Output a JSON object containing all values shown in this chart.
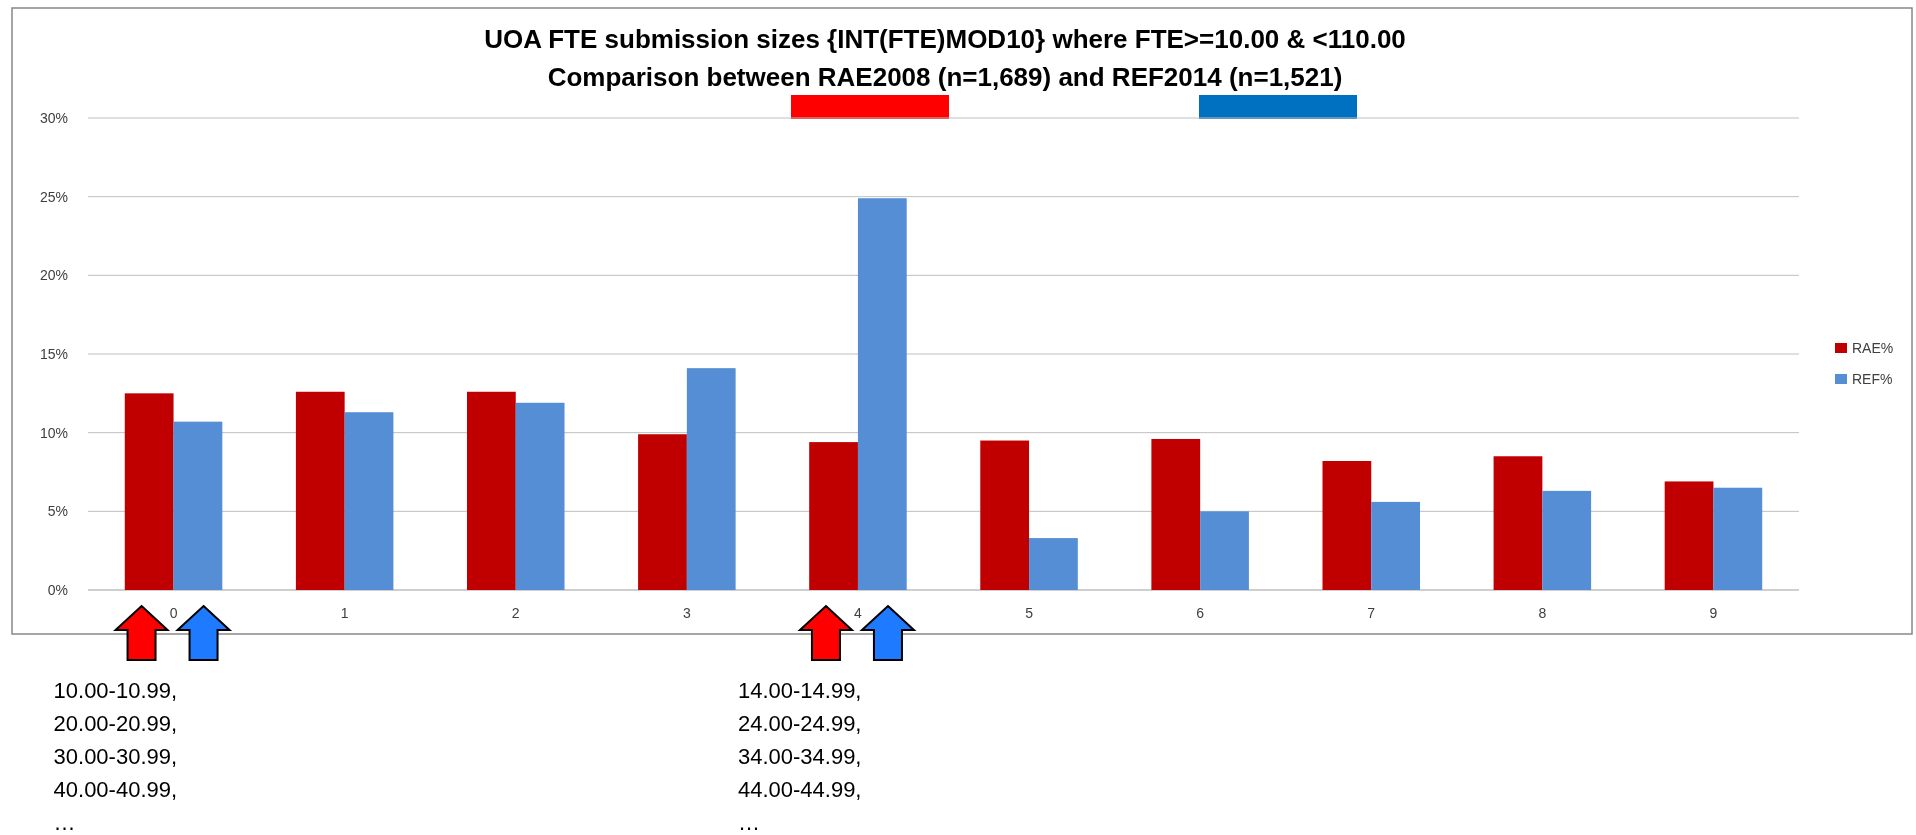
{
  "chart_data": {
    "type": "bar",
    "title": "UOA FTE submission sizes {INT(FTE)MOD10} where FTE>=10.00 & <110.00",
    "subtitle": "Comparison between RAE2008 (n=1,689) and REF2014 (n=1,521)",
    "categories": [
      "0",
      "1",
      "2",
      "3",
      "4",
      "5",
      "6",
      "7",
      "8",
      "9"
    ],
    "series": [
      {
        "name": "RAE%",
        "color": "#c00000",
        "values": [
          12.5,
          12.6,
          12.6,
          9.9,
          9.4,
          9.5,
          9.6,
          8.2,
          8.5,
          6.9
        ]
      },
      {
        "name": "REF%",
        "color": "#558ed5",
        "values": [
          10.7,
          11.3,
          11.9,
          14.1,
          24.9,
          3.3,
          5.0,
          5.6,
          6.3,
          6.5
        ]
      }
    ],
    "ylim": [
      0,
      30
    ],
    "yticks": [
      {
        "value": 0,
        "label": "0%"
      },
      {
        "value": 5,
        "label": "5%"
      },
      {
        "value": 10,
        "label": "10%"
      },
      {
        "value": 15,
        "label": "15%"
      },
      {
        "value": 20,
        "label": "20%"
      },
      {
        "value": 25,
        "label": "25%"
      },
      {
        "value": 30,
        "label": "30%"
      }
    ],
    "grid": "y",
    "legend": "right",
    "annotations": [
      "10.00-10.99,\n20.00-20.99,\n30.00-30.99,\n40.00-40.99,\n…",
      "14.00-14.99,\n24.00-24.99,\n34.00-34.99,\n44.00-44.99,\n…"
    ]
  }
}
